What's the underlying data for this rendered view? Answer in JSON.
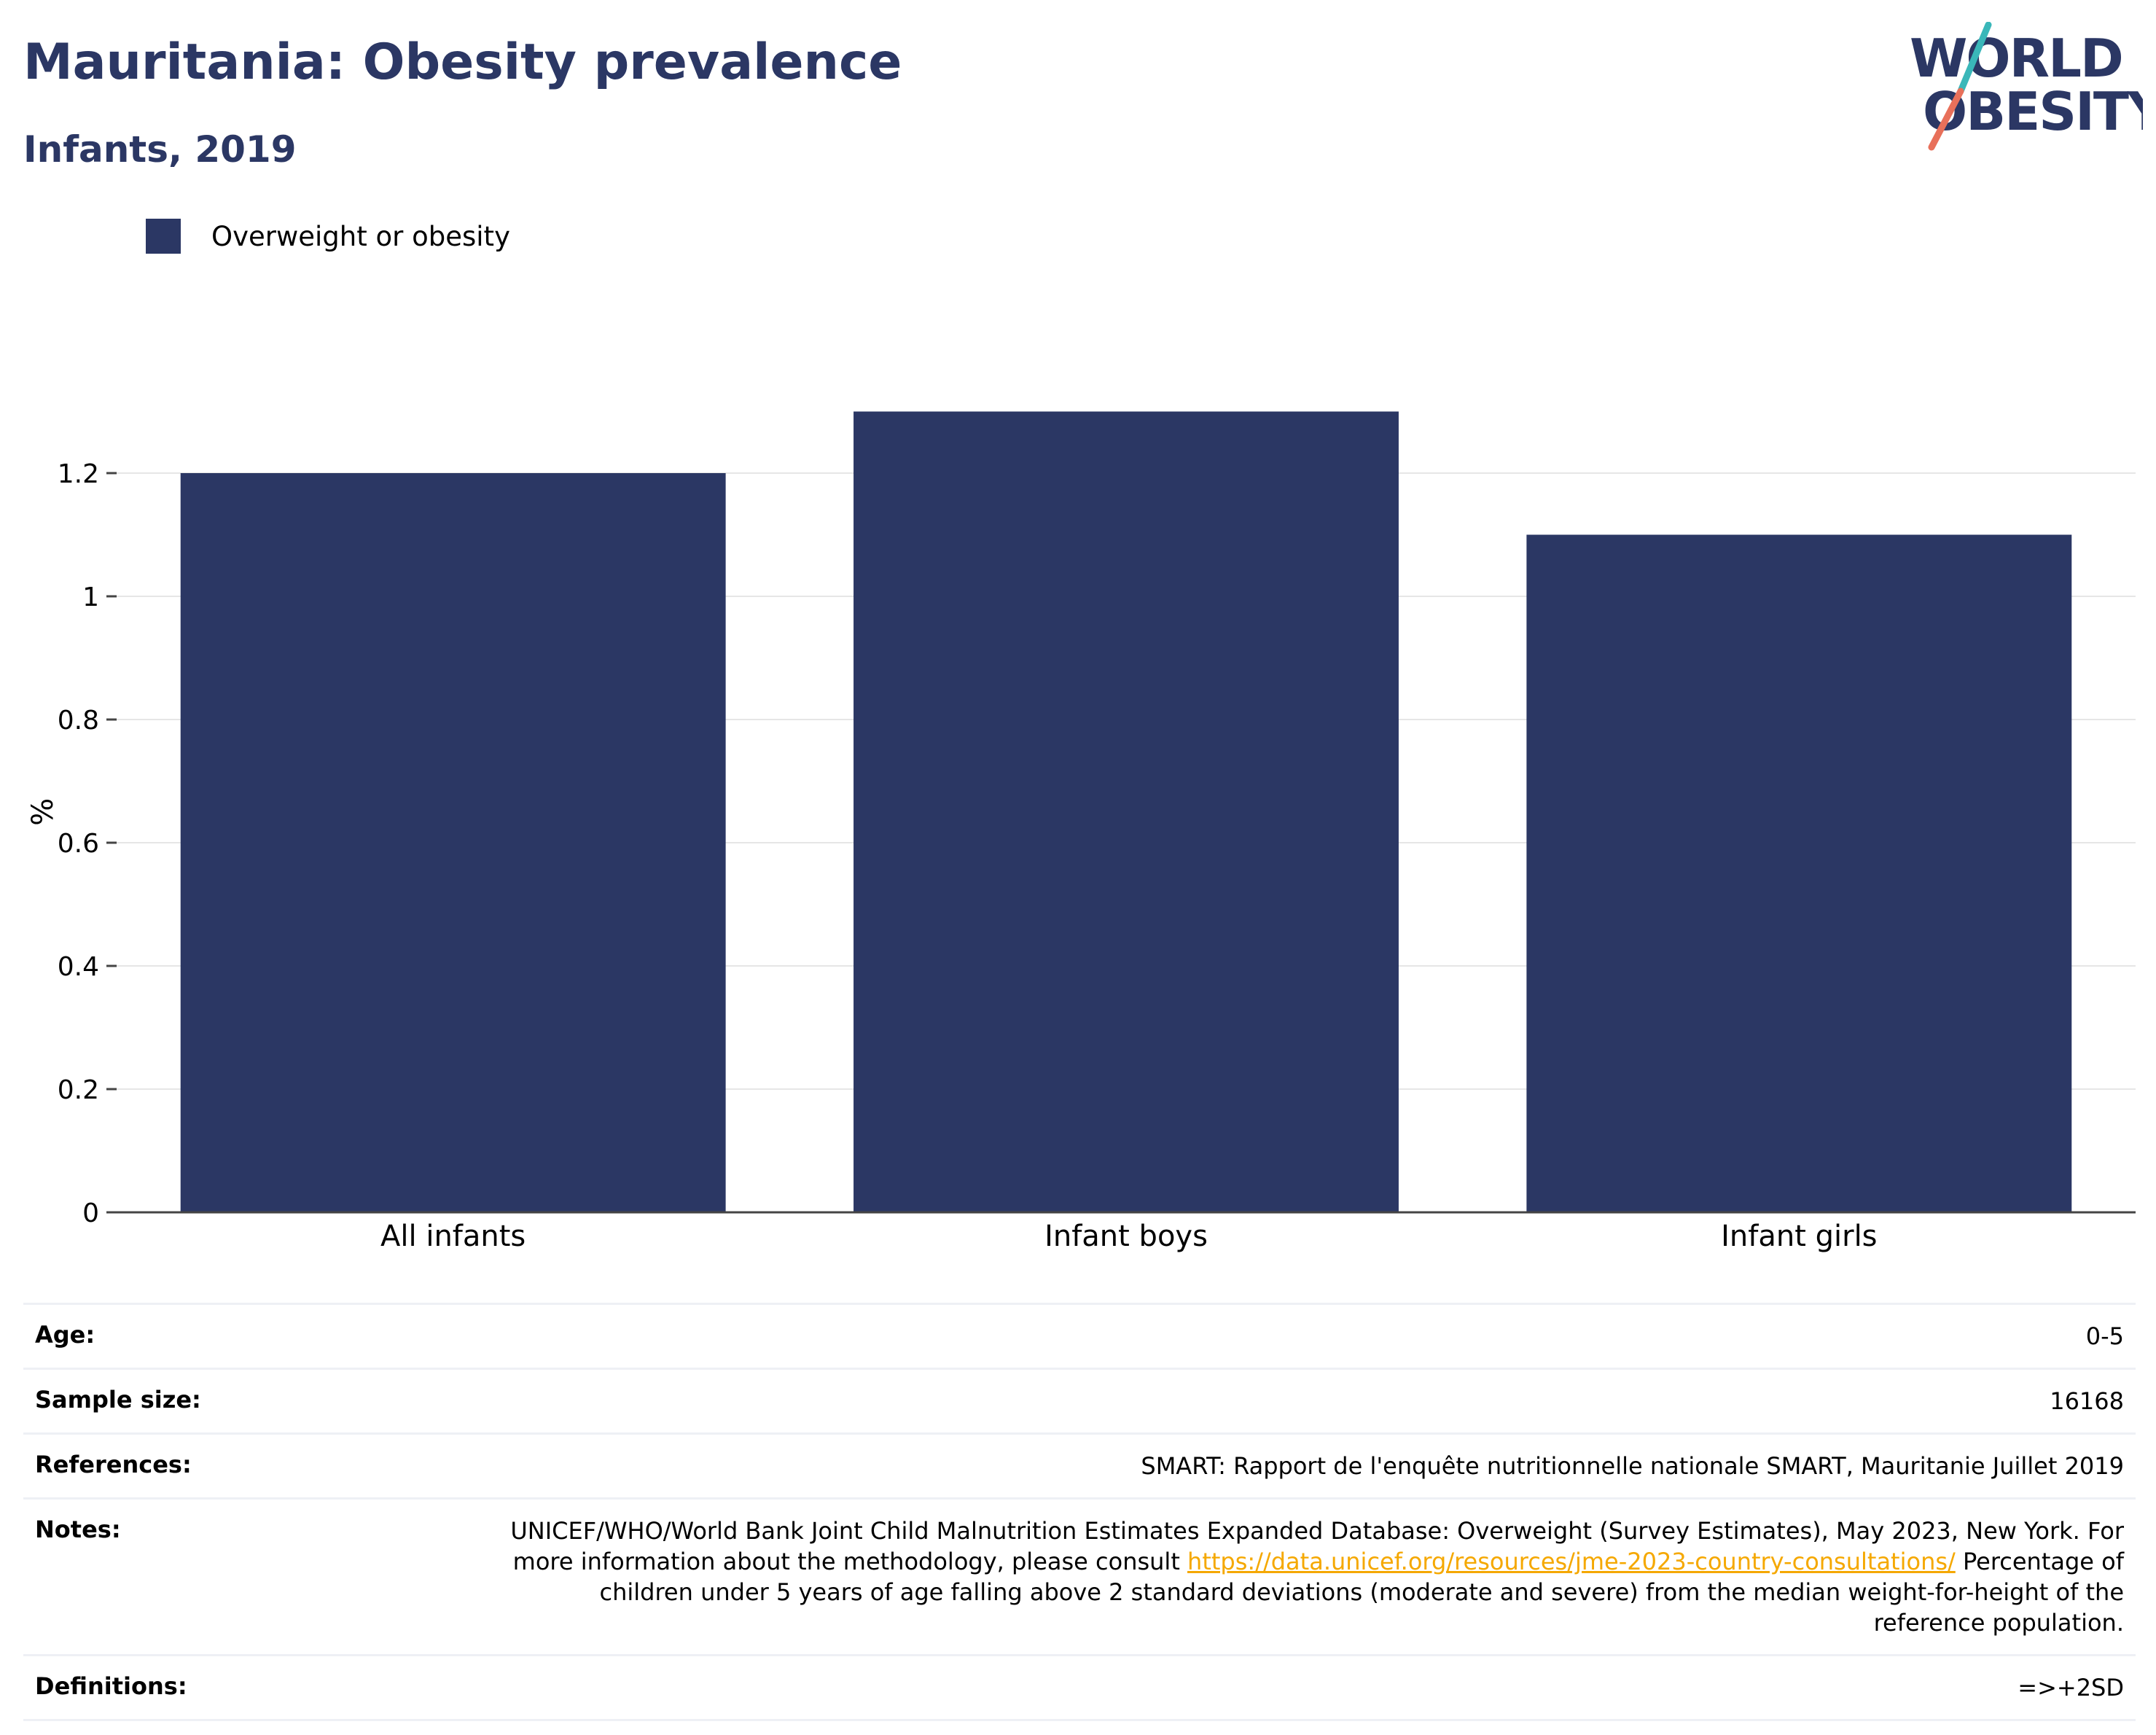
{
  "header": {
    "title": "Mauritania: Obesity prevalence",
    "subtitle": "Infants, 2019"
  },
  "logo": {
    "line1": "WORLD",
    "line2": "OBESITY",
    "colors": {
      "text": "#2b3764",
      "slash_top": "#3ab7b9",
      "slash_bottom": "#e8705a"
    }
  },
  "chart_data": {
    "type": "bar",
    "categories": [
      "All infants",
      "Infant boys",
      "Infant girls"
    ],
    "series": [
      {
        "name": "Overweight or obesity",
        "values": [
          1.2,
          1.3,
          1.1
        ],
        "color": "#2b3764"
      }
    ],
    "ylabel": "%",
    "ylim": [
      0,
      1.3
    ],
    "yticks": [
      0,
      0.2,
      0.4,
      0.6,
      0.8,
      1,
      1.2
    ],
    "yticklabels": [
      "0",
      "0.2",
      "0.4",
      "0.6",
      "0.8",
      "1",
      "1.2"
    ],
    "grid": true,
    "legend": "top-left"
  },
  "info_table": {
    "age": {
      "label": "Age:",
      "value": "0-5"
    },
    "sample_size": {
      "label": "Sample size:",
      "value": "16168"
    },
    "references": {
      "label": "References:",
      "value": "SMART: Rapport de l'enquête nutritionnelle nationale SMART, Mauritanie Juillet 2019"
    },
    "notes": {
      "label": "Notes:",
      "text_before_link": "UNICEF/WHO/World Bank Joint Child Malnutrition Estimates Expanded Database: Overweight (Survey Estimates), May 2023, New York. For more information about the methodology, please consult",
      "link": "https://data.unicef.org/resources/jme-2023-country-consultations/",
      "text_after_link": "Percentage of children under 5 years of age falling above 2 standard deviations (moderate and severe) from the median weight-for-height of the reference population."
    },
    "definitions": {
      "label": "Definitions:",
      "value": "=>+2SD"
    }
  }
}
